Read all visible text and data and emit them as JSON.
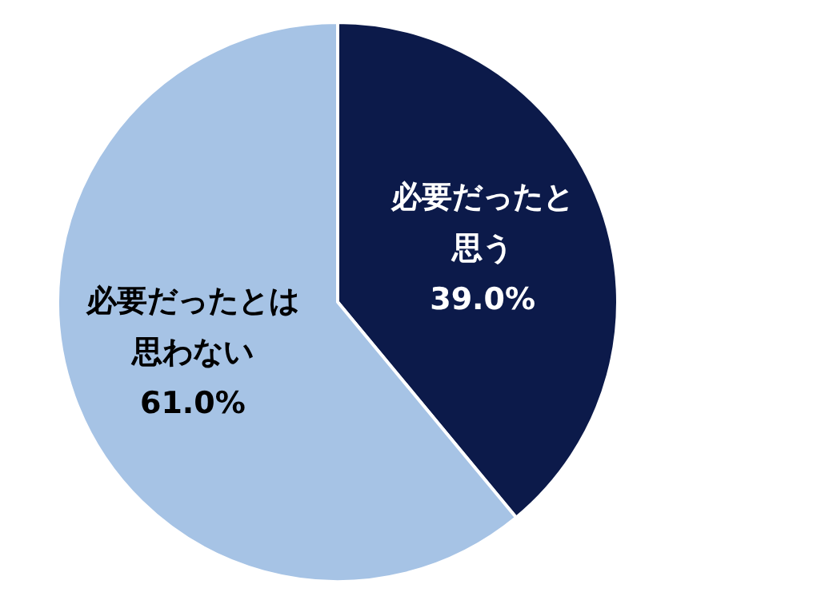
{
  "chart_data": {
    "type": "pie",
    "categories": [
      "必要だったと思う",
      "必要だったとは思わない"
    ],
    "values": [
      39.0,
      61.0
    ],
    "colors": [
      "#0c1a4a",
      "#a6c3e5"
    ],
    "value_labels": [
      "39.0%",
      "61.0%"
    ]
  }
}
